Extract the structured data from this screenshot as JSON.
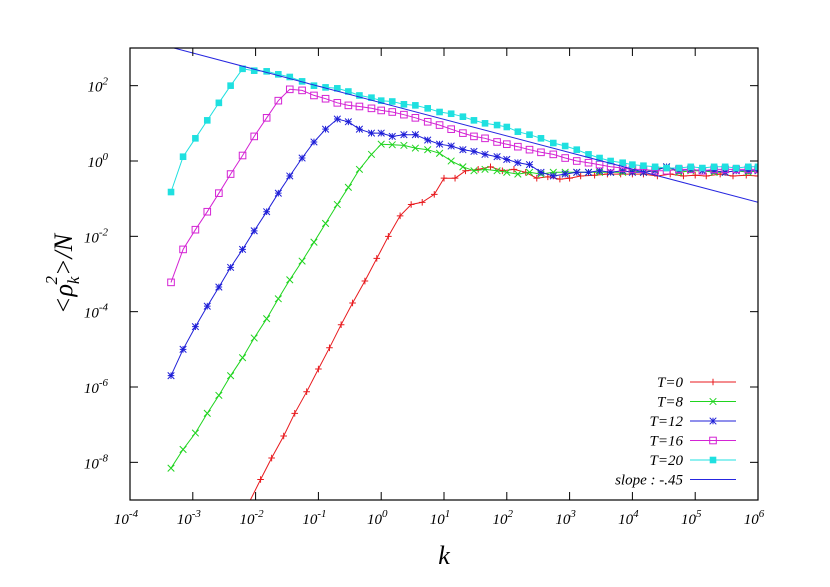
{
  "chart_data": {
    "type": "line",
    "xscale": "log",
    "yscale": "log",
    "xlim": [
      0.0001,
      1000000
    ],
    "ylim": [
      1e-09,
      1000
    ],
    "xlabel": "k",
    "ylabel": "<ρ_k^2>/N",
    "ylabel_parts": {
      "pre": "<ρ",
      "sub": "k",
      "sup": "2",
      "post": ">/N"
    },
    "xticks": [
      {
        "value": 0.0001,
        "base": "10",
        "exp": "-4"
      },
      {
        "value": 0.001,
        "base": "10",
        "exp": "-3"
      },
      {
        "value": 0.01,
        "base": "10",
        "exp": "-2"
      },
      {
        "value": 0.1,
        "base": "10",
        "exp": "-1"
      },
      {
        "value": 1,
        "base": "10",
        "exp": "0"
      },
      {
        "value": 10,
        "base": "10",
        "exp": "1"
      },
      {
        "value": 100,
        "base": "10",
        "exp": "2"
      },
      {
        "value": 1000,
        "base": "10",
        "exp": "3"
      },
      {
        "value": 10000,
        "base": "10",
        "exp": "4"
      },
      {
        "value": 100000,
        "base": "10",
        "exp": "5"
      },
      {
        "value": 1000000,
        "base": "10",
        "exp": "6"
      }
    ],
    "yticks": [
      {
        "value": 1e-08,
        "base": "10",
        "exp": "-8"
      },
      {
        "value": 1e-06,
        "base": "10",
        "exp": "-6"
      },
      {
        "value": 0.0001,
        "base": "10",
        "exp": "-4"
      },
      {
        "value": 0.01,
        "base": "10",
        "exp": "-2"
      },
      {
        "value": 1,
        "base": "10",
        "exp": "0"
      },
      {
        "value": 100,
        "base": "10",
        "exp": "2"
      }
    ],
    "legend_position": "bottom-right",
    "series": [
      {
        "name": "T=0",
        "color": "#e8191d",
        "marker": "plus",
        "points": [
          [
            0.0077,
            8e-10
          ],
          [
            0.012,
            3.5e-09
          ],
          [
            0.018,
            1.3e-08
          ],
          [
            0.028,
            5e-08
          ],
          [
            0.042,
            2e-07
          ],
          [
            0.065,
            7.5e-07
          ],
          [
            0.1,
            3e-06
          ],
          [
            0.15,
            1.1e-05
          ],
          [
            0.23,
            4.5e-05
          ],
          [
            0.35,
            0.00017
          ],
          [
            0.55,
            0.00065
          ],
          [
            0.85,
            0.0026
          ],
          [
            1.3,
            0.01
          ],
          [
            2,
            0.035
          ],
          [
            3,
            0.07
          ],
          [
            4.5,
            0.08
          ],
          [
            7,
            0.13
          ],
          [
            10,
            0.35
          ],
          [
            15,
            0.35
          ],
          [
            22,
            0.55
          ],
          [
            35,
            0.6
          ],
          [
            55,
            0.7
          ],
          [
            85,
            0.55
          ],
          [
            130,
            0.6
          ],
          [
            200,
            0.5
          ],
          [
            300,
            0.35
          ],
          [
            450,
            0.38
          ],
          [
            700,
            0.33
          ],
          [
            1000,
            0.35
          ],
          [
            1500,
            0.4
          ],
          [
            2500,
            0.42
          ],
          [
            4000,
            0.45
          ],
          [
            6500,
            0.45
          ],
          [
            10000,
            0.45
          ],
          [
            15000,
            0.45
          ],
          [
            25000,
            0.4
          ],
          [
            40000,
            0.45
          ],
          [
            65000,
            0.4
          ],
          [
            100000,
            0.42
          ],
          [
            150000,
            0.4
          ],
          [
            250000,
            0.45
          ],
          [
            400000,
            0.4
          ],
          [
            650000,
            0.42
          ],
          [
            1000000,
            0.4
          ]
        ]
      },
      {
        "name": "T=8",
        "color": "#1fd41f",
        "marker": "cross",
        "points": [
          [
            0.00045,
            7e-09
          ],
          [
            0.0007,
            2.2e-08
          ],
          [
            0.0011,
            6e-08
          ],
          [
            0.0017,
            2e-07
          ],
          [
            0.0026,
            6e-07
          ],
          [
            0.004,
            2e-06
          ],
          [
            0.0062,
            6e-06
          ],
          [
            0.0095,
            2e-05
          ],
          [
            0.015,
            6.5e-05
          ],
          [
            0.023,
            0.00022
          ],
          [
            0.035,
            0.0007
          ],
          [
            0.055,
            0.0022
          ],
          [
            0.085,
            0.007
          ],
          [
            0.13,
            0.022
          ],
          [
            0.2,
            0.07
          ],
          [
            0.3,
            0.2
          ],
          [
            0.45,
            0.6
          ],
          [
            0.7,
            1.5
          ],
          [
            1,
            2.8
          ],
          [
            1.5,
            2.7
          ],
          [
            2.3,
            2.6
          ],
          [
            3.5,
            2.2
          ],
          [
            5.5,
            2
          ],
          [
            8.5,
            1.6
          ],
          [
            13,
            1
          ],
          [
            20,
            0.7
          ],
          [
            30,
            0.55
          ],
          [
            45,
            0.6
          ],
          [
            70,
            0.55
          ],
          [
            100,
            0.5
          ],
          [
            150,
            0.45
          ],
          [
            230,
            0.5
          ],
          [
            350,
            0.45
          ],
          [
            550,
            0.5
          ],
          [
            850,
            0.5
          ],
          [
            1300,
            0.5
          ],
          [
            2000,
            0.5
          ],
          [
            3000,
            0.5
          ],
          [
            4500,
            0.5
          ],
          [
            7000,
            0.5
          ],
          [
            10000,
            0.55
          ],
          [
            15000,
            0.5
          ],
          [
            23000,
            0.6
          ],
          [
            35000,
            0.7
          ],
          [
            55000,
            0.5
          ],
          [
            85000,
            0.55
          ],
          [
            130000,
            0.55
          ],
          [
            200000,
            0.5
          ],
          [
            300000,
            0.5
          ],
          [
            450000,
            0.55
          ],
          [
            700000,
            0.5
          ],
          [
            1000000,
            0.55
          ]
        ]
      },
      {
        "name": "T=12",
        "color": "#1f1fd8",
        "marker": "star",
        "points": [
          [
            0.00045,
            2e-06
          ],
          [
            0.0007,
            1e-05
          ],
          [
            0.0011,
            4e-05
          ],
          [
            0.0017,
            0.00014
          ],
          [
            0.0026,
            0.00045
          ],
          [
            0.004,
            0.0015
          ],
          [
            0.0062,
            0.0045
          ],
          [
            0.0095,
            0.014
          ],
          [
            0.015,
            0.045
          ],
          [
            0.023,
            0.14
          ],
          [
            0.035,
            0.4
          ],
          [
            0.055,
            1.2
          ],
          [
            0.085,
            3.2
          ],
          [
            0.13,
            7
          ],
          [
            0.2,
            13
          ],
          [
            0.3,
            11
          ],
          [
            0.45,
            7
          ],
          [
            0.7,
            5.5
          ],
          [
            1,
            5.5
          ],
          [
            1.5,
            4.5
          ],
          [
            2.3,
            5
          ],
          [
            3.5,
            5
          ],
          [
            5.5,
            3.6
          ],
          [
            8.5,
            2.8
          ],
          [
            13,
            2.5
          ],
          [
            20,
            2
          ],
          [
            30,
            1.8
          ],
          [
            45,
            1.5
          ],
          [
            70,
            1.3
          ],
          [
            100,
            1.1
          ],
          [
            150,
            0.9
          ],
          [
            230,
            0.8
          ],
          [
            350,
            0.5
          ],
          [
            550,
            0.4
          ],
          [
            850,
            0.45
          ],
          [
            1300,
            0.5
          ],
          [
            2000,
            0.5
          ],
          [
            3000,
            0.55
          ],
          [
            4500,
            0.5
          ],
          [
            7000,
            0.55
          ],
          [
            10000,
            0.5
          ],
          [
            15000,
            0.5
          ],
          [
            23000,
            0.55
          ],
          [
            35000,
            0.7
          ],
          [
            55000,
            0.55
          ],
          [
            85000,
            0.6
          ],
          [
            130000,
            0.55
          ],
          [
            200000,
            0.55
          ],
          [
            300000,
            0.5
          ],
          [
            450000,
            0.55
          ],
          [
            700000,
            0.55
          ],
          [
            1000000,
            0.55
          ]
        ]
      },
      {
        "name": "T=16",
        "color": "#d423d4",
        "marker": "square-open",
        "points": [
          [
            0.00045,
            0.0006
          ],
          [
            0.0007,
            0.0045
          ],
          [
            0.0011,
            0.015
          ],
          [
            0.0017,
            0.045
          ],
          [
            0.0026,
            0.14
          ],
          [
            0.004,
            0.45
          ],
          [
            0.0062,
            1.4
          ],
          [
            0.0095,
            4.5
          ],
          [
            0.015,
            14
          ],
          [
            0.023,
            40
          ],
          [
            0.035,
            80
          ],
          [
            0.055,
            75
          ],
          [
            0.085,
            55
          ],
          [
            0.13,
            45
          ],
          [
            0.2,
            35
          ],
          [
            0.3,
            30
          ],
          [
            0.45,
            28
          ],
          [
            0.7,
            25
          ],
          [
            1,
            22
          ],
          [
            1.5,
            20
          ],
          [
            2.3,
            17
          ],
          [
            3.5,
            14
          ],
          [
            5.5,
            11
          ],
          [
            8.5,
            9
          ],
          [
            13,
            7
          ],
          [
            20,
            5.5
          ],
          [
            30,
            4.5
          ],
          [
            45,
            4
          ],
          [
            70,
            3.2
          ],
          [
            100,
            2.8
          ],
          [
            150,
            2.4
          ],
          [
            230,
            2
          ],
          [
            350,
            1.7
          ],
          [
            550,
            1.5
          ],
          [
            850,
            1.2
          ],
          [
            1300,
            1
          ],
          [
            2000,
            0.9
          ],
          [
            3000,
            0.8
          ],
          [
            4500,
            0.7
          ],
          [
            7000,
            0.65
          ],
          [
            10000,
            0.6
          ],
          [
            15000,
            0.6
          ],
          [
            23000,
            0.55
          ],
          [
            35000,
            0.55
          ],
          [
            55000,
            0.6
          ],
          [
            85000,
            0.6
          ],
          [
            130000,
            0.55
          ],
          [
            200000,
            0.6
          ],
          [
            300000,
            0.6
          ],
          [
            450000,
            0.6
          ],
          [
            700000,
            0.6
          ],
          [
            1000000,
            0.6
          ]
        ]
      },
      {
        "name": "T=20",
        "color": "#1fe0e0",
        "marker": "square-filled",
        "points": [
          [
            0.00045,
            0.15
          ],
          [
            0.0007,
            1.3
          ],
          [
            0.0011,
            4
          ],
          [
            0.0017,
            12
          ],
          [
            0.0026,
            35
          ],
          [
            0.004,
            100
          ],
          [
            0.0062,
            280
          ],
          [
            0.0095,
            250
          ],
          [
            0.015,
            240
          ],
          [
            0.023,
            200
          ],
          [
            0.035,
            170
          ],
          [
            0.055,
            130
          ],
          [
            0.085,
            100
          ],
          [
            0.13,
            90
          ],
          [
            0.2,
            85
          ],
          [
            0.3,
            70
          ],
          [
            0.45,
            55
          ],
          [
            0.7,
            48
          ],
          [
            1,
            40
          ],
          [
            1.5,
            38
          ],
          [
            2.3,
            32
          ],
          [
            3.5,
            30
          ],
          [
            5.5,
            25
          ],
          [
            8.5,
            20
          ],
          [
            13,
            18
          ],
          [
            20,
            15
          ],
          [
            30,
            12
          ],
          [
            45,
            10
          ],
          [
            70,
            9
          ],
          [
            100,
            8
          ],
          [
            150,
            6
          ],
          [
            230,
            5
          ],
          [
            350,
            4
          ],
          [
            550,
            3
          ],
          [
            850,
            2.5
          ],
          [
            1300,
            2
          ],
          [
            2000,
            1.5
          ],
          [
            3000,
            1.2
          ],
          [
            4500,
            1
          ],
          [
            7000,
            0.9
          ],
          [
            10000,
            0.8
          ],
          [
            15000,
            0.75
          ],
          [
            23000,
            0.7
          ],
          [
            35000,
            0.65
          ],
          [
            55000,
            0.65
          ],
          [
            85000,
            0.7
          ],
          [
            130000,
            0.65
          ],
          [
            200000,
            0.7
          ],
          [
            300000,
            0.7
          ],
          [
            450000,
            0.65
          ],
          [
            700000,
            0.7
          ],
          [
            1000000,
            0.7
          ]
        ]
      },
      {
        "name": "slope : -.45",
        "color": "#2626e0",
        "marker": "none",
        "points": [
          [
            0.0005,
            1000
          ],
          [
            1000000,
            0.08
          ]
        ]
      }
    ]
  }
}
